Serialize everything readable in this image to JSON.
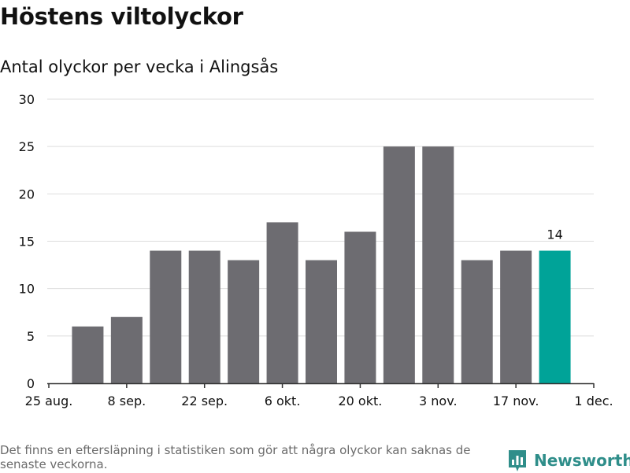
{
  "header": {
    "title": "Höstens viltolyckor",
    "subtitle": "Antal olyckor per vecka i Alingsås"
  },
  "chart_data": {
    "type": "bar",
    "title": "Höstens viltolyckor",
    "subtitle": "Antal olyckor per vecka i Alingsås",
    "xlabel": "",
    "ylabel": "",
    "x_ticks": [
      "25 aug.",
      "8 sep.",
      "22 sep.",
      "6 okt.",
      "20 okt.",
      "3 nov.",
      "17 nov.",
      "1 dec."
    ],
    "weeks": [
      "2024-09-01",
      "2024-09-08",
      "2024-09-15",
      "2024-09-22",
      "2024-09-29",
      "2024-10-06",
      "2024-10-13",
      "2024-10-20",
      "2024-10-27",
      "2024-11-03",
      "2024-11-10",
      "2024-11-17",
      "2024-11-24"
    ],
    "values": [
      6,
      7,
      14,
      14,
      13,
      17,
      13,
      16,
      25,
      25,
      13,
      14,
      14
    ],
    "highlight_value_label": "14",
    "y_ticks": [
      0,
      5,
      10,
      15,
      20,
      25,
      30
    ],
    "ylim": [
      0,
      30
    ],
    "grid": true,
    "legend": "none",
    "colors": {
      "bar": "#6d6c71",
      "highlight": "#00a398",
      "grid": "#dddddd"
    }
  },
  "footer": {
    "note": "Det finns en eftersläpning i statistiken som gör att några olyckor kan saknas de senaste veckorna.",
    "brand": "Newsworthy",
    "brand_icon": "newsworthy-logo-icon",
    "brand_color": "#2f8e8a"
  }
}
